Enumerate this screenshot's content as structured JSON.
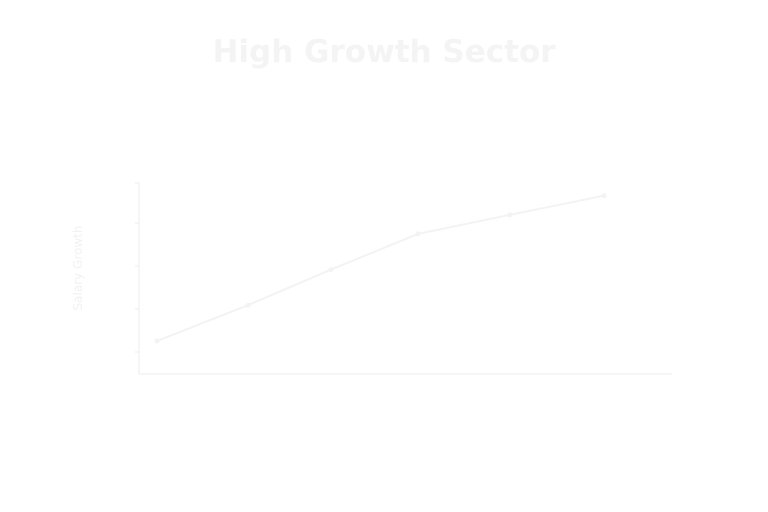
{
  "chart_data": {
    "type": "line",
    "title": "High Growth Sector",
    "subtitle": "",
    "xlabel": "",
    "ylabel": "Salary Growth",
    "categories": [
      "",
      "",
      "",
      "",
      "",
      ""
    ],
    "series": [
      {
        "name": "",
        "values": [
          0.6,
          3.4,
          6.2,
          9.0,
          10.5,
          12.0
        ],
        "data_labels": [
          "",
          "",
          "",
          "",
          "",
          ""
        ]
      }
    ],
    "y_ticks": [
      "",
      "",
      "",
      "",
      ""
    ],
    "ylim": [
      -2,
      13
    ],
    "grid": false,
    "footnote": "",
    "colors": {
      "line": "#f3f3f3",
      "axis": "#eeeeee",
      "text": "#f1f1f1"
    }
  }
}
